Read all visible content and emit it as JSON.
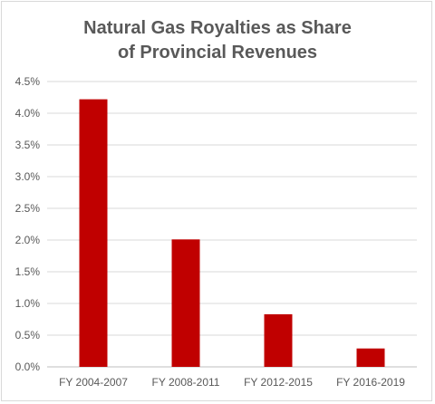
{
  "chart_data": {
    "type": "bar",
    "title": "Natural Gas Royalties as Share of Provincial Revenues",
    "title_lines": [
      "Natural Gas Royalties as Share",
      "of Provincial Revenues"
    ],
    "categories": [
      "FY 2004-2007",
      "FY 2008-2011",
      "FY 2012-2015",
      "FY 2016-2019"
    ],
    "values": [
      4.22,
      2.01,
      0.83,
      0.29
    ],
    "value_unit": "%",
    "ylim": [
      0,
      4.5
    ],
    "yticks": [
      "0.0%",
      "0.5%",
      "1.0%",
      "1.5%",
      "2.0%",
      "2.5%",
      "3.0%",
      "3.5%",
      "4.0%",
      "4.5%"
    ],
    "xlabel": "",
    "ylabel": "",
    "bar_color": "#c00000",
    "grid": true,
    "legend": "none"
  }
}
